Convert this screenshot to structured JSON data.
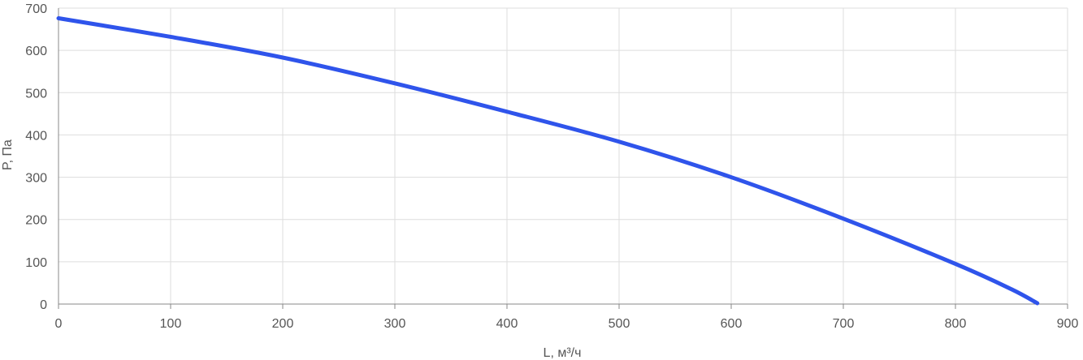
{
  "chart_data": {
    "type": "line",
    "title": "",
    "xlabel": "L, м³/ч",
    "ylabel": "P, Па",
    "xlim": [
      0,
      900
    ],
    "ylim": [
      0,
      700
    ],
    "x_ticks": [
      0,
      100,
      200,
      300,
      400,
      500,
      600,
      700,
      800,
      900
    ],
    "y_ticks": [
      0,
      100,
      200,
      300,
      400,
      500,
      600,
      700
    ],
    "x_tick_labels": [
      "0",
      "100",
      "200",
      "300",
      "400",
      "500",
      "600",
      "700",
      "800",
      "900"
    ],
    "y_tick_labels": [
      "0",
      "100",
      "200",
      "300",
      "400",
      "500",
      "600",
      "700"
    ],
    "grid": true,
    "series": [
      {
        "color": "#2f54eb",
        "x": [
          0,
          100,
          200,
          300,
          400,
          500,
          600,
          700,
          800,
          850,
          873
        ],
        "y": [
          676,
          632,
          583,
          522,
          455,
          384,
          300,
          202,
          95,
          35,
          2
        ]
      }
    ]
  }
}
